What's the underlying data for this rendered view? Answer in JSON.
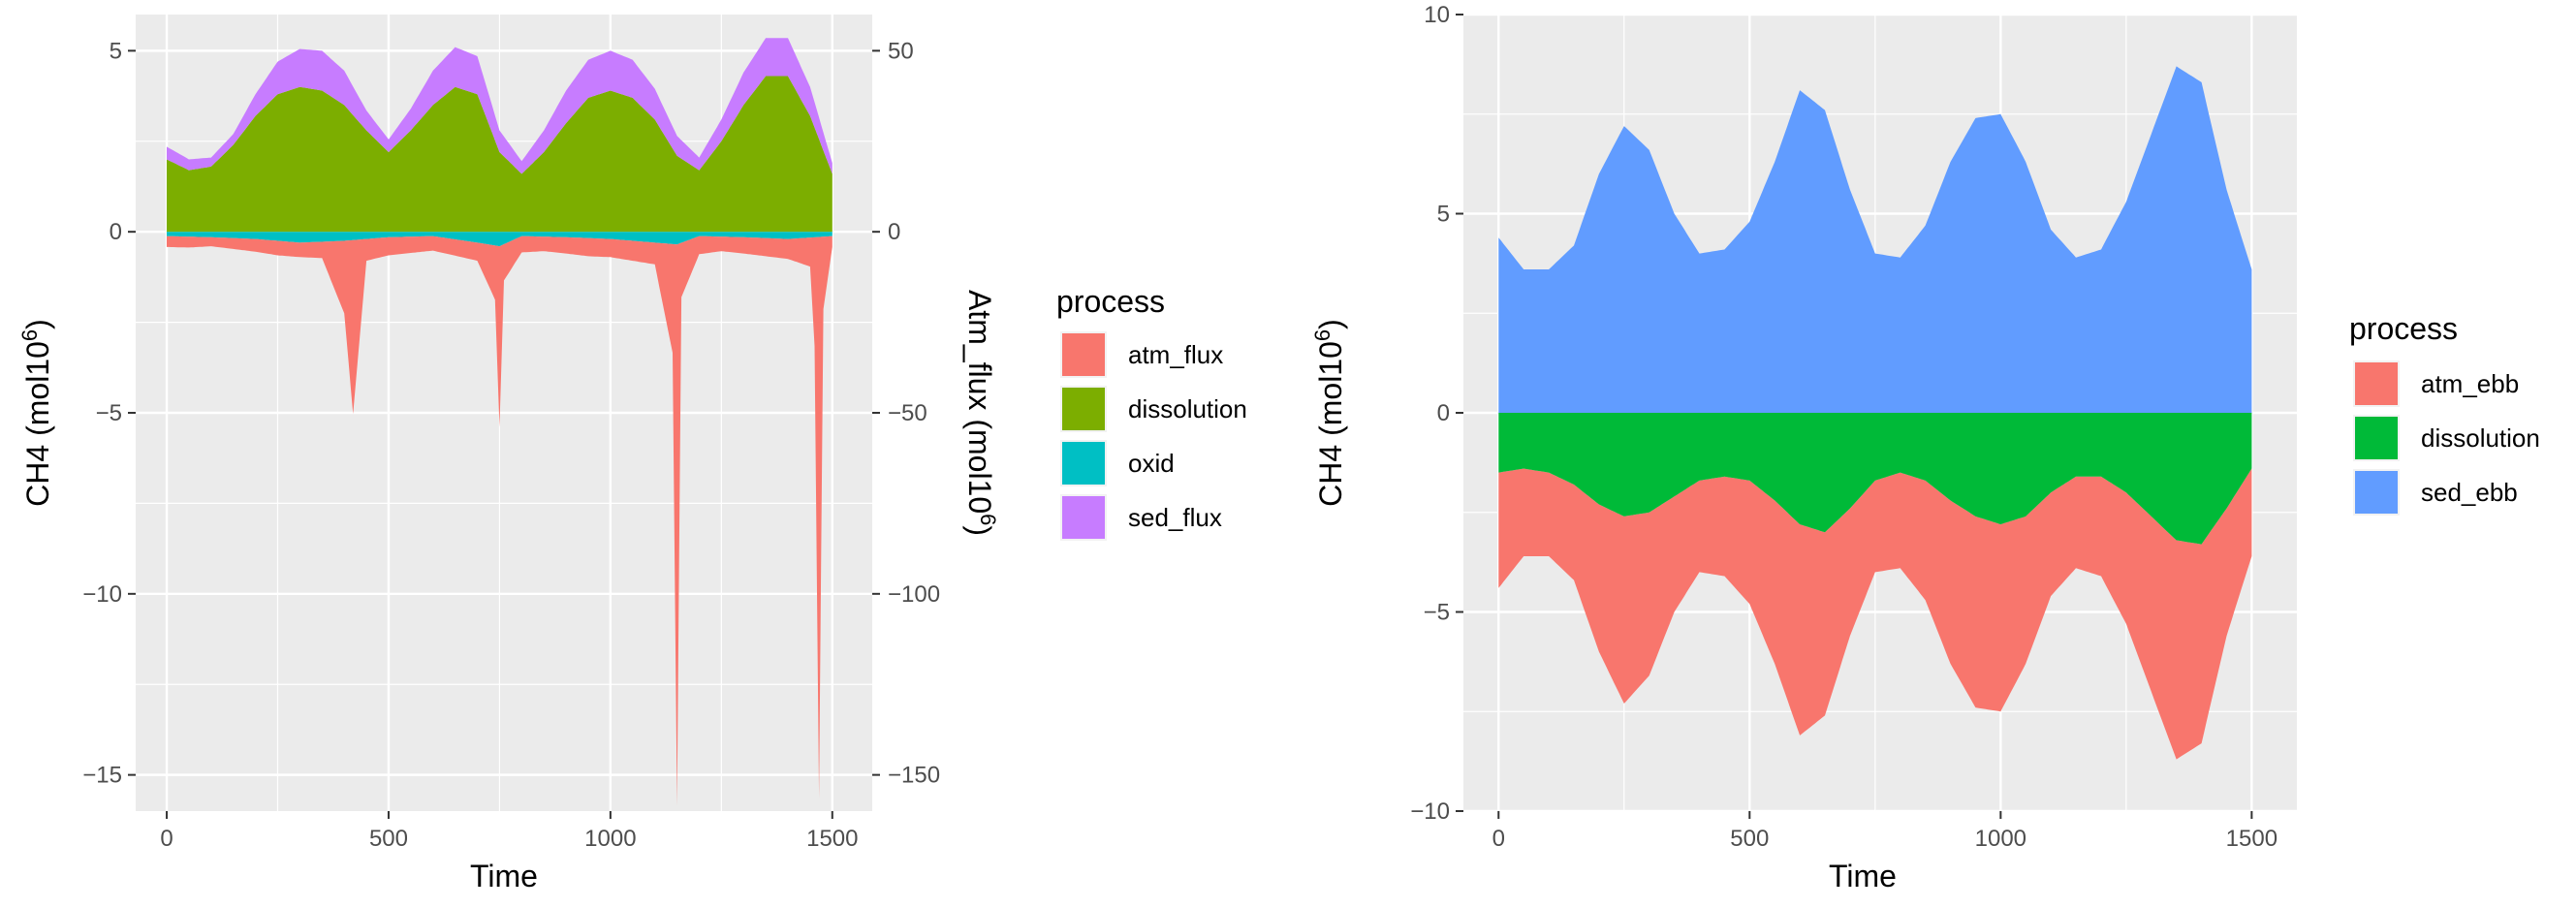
{
  "chart_data": [
    {
      "type": "area",
      "x_label": "Time",
      "y_label": "CH4 (mol10",
      "y_label_sup": "6",
      "y_label_close": ")",
      "y2_label": "Atm_flux (mol10",
      "y2_label_sup": "6",
      "y2_label_close": ")",
      "xlim": [
        -70,
        1590
      ],
      "ylim": [
        -16,
        6
      ],
      "y2lim": [
        -160,
        60
      ],
      "x_ticks": [
        0,
        500,
        1000,
        1500
      ],
      "x_tick_labels": [
        "0",
        "500",
        "1000",
        "1500"
      ],
      "y_ticks": [
        5,
        0,
        -5,
        -10,
        -15
      ],
      "y_tick_labels": [
        "5",
        "0",
        "−5",
        "−10",
        "−15"
      ],
      "y2_ticks": [
        50,
        0,
        -50,
        -100,
        -150
      ],
      "y2_tick_labels": [
        "50",
        "0",
        "−50",
        "−100",
        "−150"
      ],
      "legend_title": "process",
      "legend_position": "right",
      "grid": true,
      "series": [
        {
          "name": "atm_flux",
          "color": "#F8766D",
          "x": [
            0,
            50,
            100,
            150,
            200,
            250,
            300,
            350,
            400,
            420,
            450,
            500,
            550,
            600,
            650,
            700,
            740,
            750,
            760,
            800,
            850,
            900,
            950,
            1000,
            1050,
            1100,
            1140,
            1150,
            1160,
            1200,
            1250,
            1300,
            1350,
            1400,
            1450,
            1460,
            1470,
            1480,
            1500
          ],
          "values": [
            -0.3,
            -0.3,
            -0.25,
            -0.3,
            -0.35,
            -0.4,
            -0.4,
            -0.45,
            -2.0,
            -4.8,
            -0.6,
            -0.5,
            -0.45,
            -0.4,
            -0.45,
            -0.5,
            -1.5,
            -5.0,
            -1.0,
            -0.45,
            -0.4,
            -0.45,
            -0.5,
            -0.5,
            -0.55,
            -0.6,
            -3.0,
            -15.5,
            -1.5,
            -0.5,
            -0.4,
            -0.45,
            -0.5,
            -0.55,
            -0.8,
            -3.0,
            -15.5,
            -2.0,
            -0.3
          ]
        },
        {
          "name": "dissolution",
          "color": "#7CAE00",
          "x": [
            0,
            50,
            100,
            150,
            200,
            250,
            300,
            350,
            400,
            450,
            500,
            550,
            600,
            650,
            700,
            750,
            800,
            850,
            900,
            950,
            1000,
            1050,
            1100,
            1150,
            1200,
            1250,
            1300,
            1350,
            1400,
            1450,
            1500
          ],
          "values": [
            2.0,
            1.7,
            1.8,
            2.4,
            3.2,
            3.8,
            4.0,
            3.9,
            3.5,
            2.8,
            2.2,
            2.8,
            3.5,
            4.0,
            3.8,
            2.2,
            1.6,
            2.2,
            3.0,
            3.7,
            3.9,
            3.7,
            3.1,
            2.1,
            1.7,
            2.5,
            3.5,
            4.3,
            4.3,
            3.2,
            1.6
          ]
        },
        {
          "name": "oxid",
          "color": "#00BFC4",
          "x": [
            0,
            100,
            200,
            300,
            400,
            500,
            600,
            700,
            750,
            800,
            900,
            1000,
            1100,
            1150,
            1200,
            1300,
            1400,
            1500
          ],
          "values": [
            -0.12,
            -0.15,
            -0.2,
            -0.3,
            -0.25,
            -0.15,
            -0.12,
            -0.3,
            -0.4,
            -0.12,
            -0.15,
            -0.2,
            -0.3,
            -0.35,
            -0.12,
            -0.15,
            -0.2,
            -0.12
          ]
        },
        {
          "name": "sed_flux",
          "color": "#C77CFF",
          "x": [
            0,
            50,
            100,
            150,
            200,
            250,
            300,
            350,
            400,
            450,
            500,
            550,
            600,
            650,
            700,
            750,
            800,
            850,
            900,
            950,
            1000,
            1050,
            1100,
            1150,
            1200,
            1250,
            1300,
            1350,
            1400,
            1450,
            1500
          ],
          "values": [
            0.35,
            0.3,
            0.25,
            0.3,
            0.6,
            0.9,
            1.05,
            1.1,
            0.95,
            0.55,
            0.35,
            0.6,
            0.95,
            1.1,
            1.05,
            0.6,
            0.35,
            0.6,
            0.9,
            1.05,
            1.1,
            1.05,
            0.85,
            0.55,
            0.35,
            0.6,
            0.9,
            1.05,
            1.05,
            0.8,
            0.3
          ]
        }
      ]
    },
    {
      "type": "area",
      "x_label": "Time",
      "y_label": "CH4 (mol10",
      "y_label_sup": "6",
      "y_label_close": ")",
      "xlim": [
        -70,
        1590
      ],
      "ylim": [
        -10,
        10
      ],
      "x_ticks": [
        0,
        500,
        1000,
        1500
      ],
      "x_tick_labels": [
        "0",
        "500",
        "1000",
        "1500"
      ],
      "y_ticks": [
        10,
        5,
        0,
        -5,
        -10
      ],
      "y_tick_labels": [
        "10",
        "5",
        "0",
        "−5",
        "−10"
      ],
      "legend_title": "process",
      "legend_position": "right",
      "grid": true,
      "series": [
        {
          "name": "sed_ebb",
          "color": "#619CFF",
          "x": [
            0,
            50,
            100,
            150,
            200,
            250,
            300,
            350,
            400,
            450,
            500,
            550,
            600,
            650,
            700,
            750,
            800,
            850,
            900,
            950,
            1000,
            1050,
            1100,
            1150,
            1200,
            1250,
            1300,
            1350,
            1400,
            1450,
            1500
          ],
          "values": [
            4.4,
            3.6,
            3.6,
            4.2,
            6.0,
            7.2,
            6.6,
            5.0,
            4.0,
            4.1,
            4.8,
            6.3,
            8.1,
            7.6,
            5.6,
            4.0,
            3.9,
            4.7,
            6.3,
            7.4,
            7.5,
            6.3,
            4.6,
            3.9,
            4.1,
            5.3,
            7.0,
            8.7,
            8.3,
            5.6,
            3.6
          ]
        },
        {
          "name": "dissolution",
          "color": "#00BA38",
          "x": [
            0,
            50,
            100,
            150,
            200,
            250,
            300,
            350,
            400,
            450,
            500,
            550,
            600,
            650,
            700,
            750,
            800,
            850,
            900,
            950,
            1000,
            1050,
            1100,
            1150,
            1200,
            1250,
            1300,
            1350,
            1400,
            1450,
            1500
          ],
          "values": [
            -1.5,
            -1.4,
            -1.5,
            -1.8,
            -2.3,
            -2.6,
            -2.5,
            -2.1,
            -1.7,
            -1.6,
            -1.7,
            -2.2,
            -2.8,
            -3.0,
            -2.4,
            -1.7,
            -1.5,
            -1.7,
            -2.2,
            -2.6,
            -2.8,
            -2.6,
            -2.0,
            -1.6,
            -1.6,
            -2.0,
            -2.6,
            -3.2,
            -3.3,
            -2.4,
            -1.4
          ]
        },
        {
          "name": "atm_ebb",
          "color": "#F8766D",
          "x": [
            0,
            50,
            100,
            150,
            200,
            250,
            300,
            350,
            400,
            450,
            500,
            550,
            600,
            650,
            700,
            750,
            800,
            850,
            900,
            950,
            1000,
            1050,
            1100,
            1150,
            1200,
            1250,
            1300,
            1350,
            1400,
            1450,
            1500
          ],
          "values": [
            -2.9,
            -2.2,
            -2.1,
            -2.4,
            -3.7,
            -4.7,
            -4.1,
            -2.9,
            -2.3,
            -2.5,
            -3.1,
            -4.1,
            -5.3,
            -4.6,
            -3.2,
            -2.3,
            -2.4,
            -3.0,
            -4.1,
            -4.8,
            -4.7,
            -3.7,
            -2.6,
            -2.3,
            -2.5,
            -3.3,
            -4.4,
            -5.5,
            -5.0,
            -3.2,
            -2.2
          ]
        }
      ]
    }
  ]
}
